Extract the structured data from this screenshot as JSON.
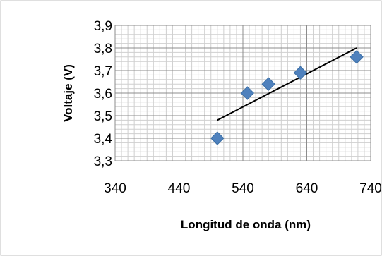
{
  "chart_data": {
    "type": "scatter",
    "title": "",
    "xlabel": "Longitud de onda (nm)",
    "ylabel": "Voltaje (V)",
    "xlim": [
      340,
      740
    ],
    "ylim": [
      3.3,
      3.9
    ],
    "x_ticks": [
      "340",
      "440",
      "540",
      "640",
      "740"
    ],
    "y_ticks": [
      "3,3",
      "3,4",
      "3,5",
      "3,6",
      "3,7",
      "3,8",
      "3,9"
    ],
    "grid": "on",
    "legend": "none",
    "series": [
      {
        "marker": "diamond",
        "color": "#4f81bd",
        "points": [
          {
            "x": 500,
            "y": 3.4
          },
          {
            "x": 547,
            "y": 3.6
          },
          {
            "x": 580,
            "y": 3.64
          },
          {
            "x": 630,
            "y": 3.69
          },
          {
            "x": 718,
            "y": 3.76
          }
        ]
      }
    ],
    "trendline": {
      "type": "linear",
      "color": "#000000",
      "from": {
        "x": 500,
        "y": 3.48
      },
      "to": {
        "x": 718,
        "y": 3.8
      }
    }
  }
}
